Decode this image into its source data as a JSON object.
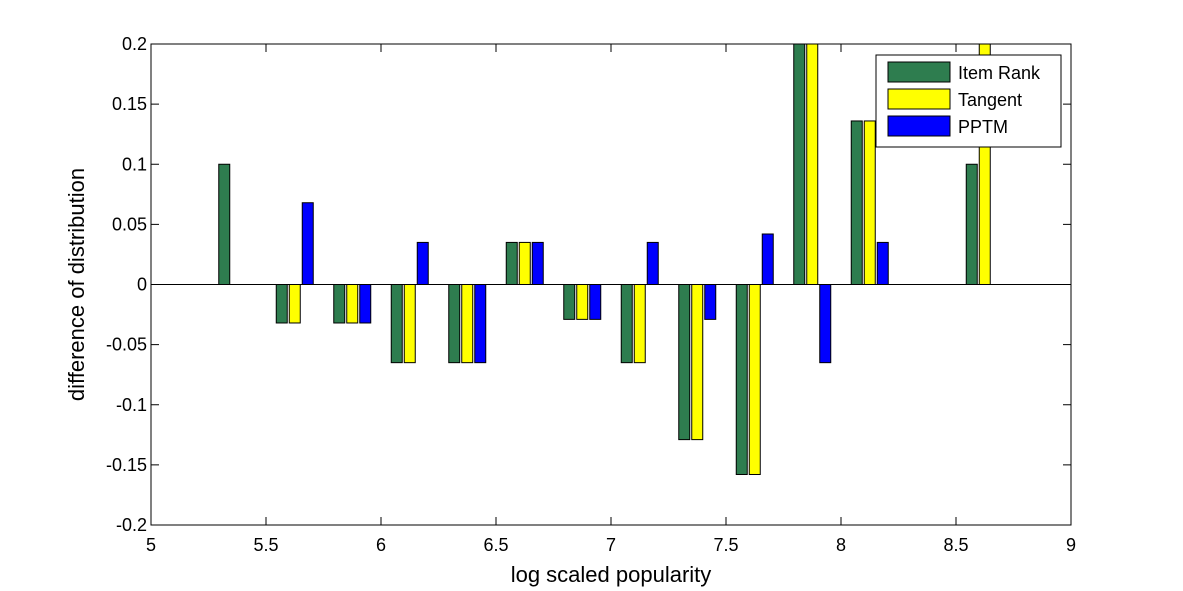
{
  "chart_data": {
    "type": "bar",
    "title": "",
    "xlabel": "log scaled popularity",
    "ylabel": "difference of distribution",
    "xlim": [
      5,
      9
    ],
    "ylim": [
      -0.2,
      0.2
    ],
    "xticks": [
      "5",
      "5.5",
      "6",
      "6.5",
      "7",
      "7.5",
      "8",
      "8.5",
      "9"
    ],
    "xtick_values": [
      5,
      5.5,
      6,
      6.5,
      7,
      7.5,
      8,
      8.5,
      9
    ],
    "yticks": [
      "-0.2",
      "-0.15",
      "-0.1",
      "-0.05",
      "0",
      "0.05",
      "0.1",
      "0.15",
      "0.2"
    ],
    "ytick_values": [
      -0.2,
      -0.15,
      -0.1,
      -0.05,
      0,
      0.05,
      0.1,
      0.15,
      0.2
    ],
    "grid": false,
    "legend_position": "top-right",
    "categories": [
      5.375,
      5.625,
      5.875,
      6.125,
      6.375,
      6.625,
      6.875,
      7.125,
      7.375,
      7.625,
      7.875,
      8.125,
      8.375,
      8.625
    ],
    "series": [
      {
        "name": "Item Rank",
        "color": "#2e7d4f",
        "values": [
          0.1,
          -0.032,
          -0.032,
          -0.065,
          -0.065,
          0.035,
          -0.029,
          -0.065,
          -0.129,
          -0.158,
          0.2,
          0.136,
          0,
          0.1
        ]
      },
      {
        "name": "Tangent",
        "color": "#ffff00",
        "values": [
          0,
          -0.032,
          -0.032,
          -0.065,
          -0.065,
          0.035,
          -0.029,
          -0.065,
          -0.129,
          -0.158,
          0.2,
          0.136,
          0,
          0.2
        ]
      },
      {
        "name": "PPTM",
        "color": "#0000ff",
        "values": [
          0,
          0.068,
          -0.032,
          0.035,
          -0.065,
          0.035,
          -0.029,
          0.035,
          -0.029,
          0.042,
          -0.065,
          0.035,
          0,
          0
        ]
      }
    ]
  }
}
